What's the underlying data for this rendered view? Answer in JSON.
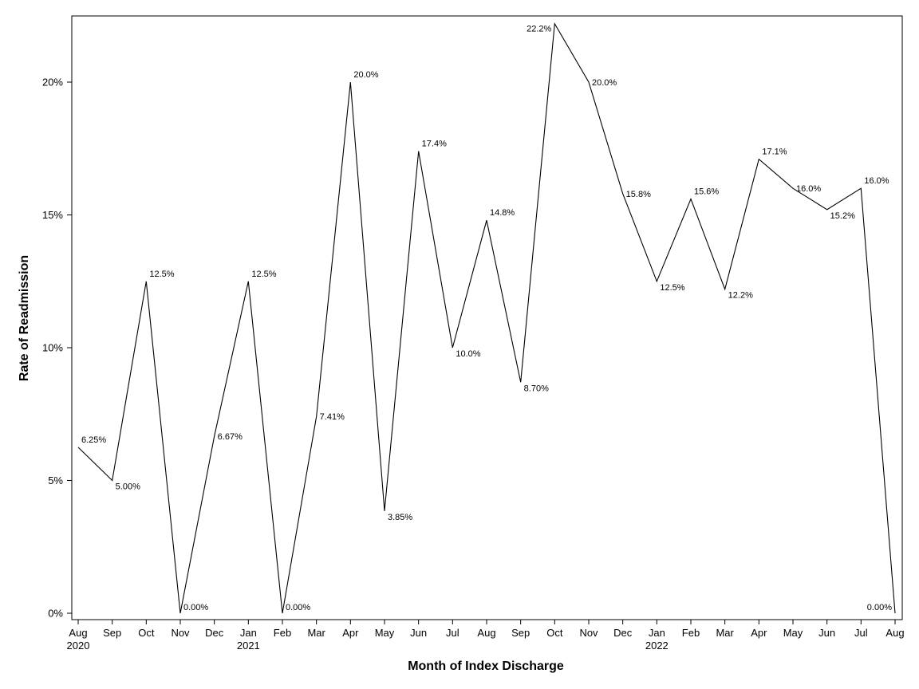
{
  "chart_data": {
    "type": "line",
    "title": "",
    "xlabel": "Month of Index Discharge",
    "ylabel": "Rate of Readmission",
    "ylim": [
      0,
      22.2
    ],
    "yticks": [
      "0%",
      "5%",
      "10%",
      "15%",
      "20%"
    ],
    "grid": false,
    "legend": "none",
    "line_color": "#000000",
    "categories": [
      "Aug 2020",
      "Sep",
      "Oct",
      "Nov",
      "Dec",
      "Jan 2021",
      "Feb",
      "Mar",
      "Apr",
      "May",
      "Jun",
      "Jul",
      "Aug",
      "Sep",
      "Oct",
      "Nov",
      "Dec",
      "Jan 2022",
      "Feb",
      "Mar",
      "Apr",
      "May",
      "Jun",
      "Jul",
      "Aug"
    ],
    "x_tick_month": [
      "Aug",
      "Sep",
      "Oct",
      "Nov",
      "Dec",
      "Jan",
      "Feb",
      "Mar",
      "Apr",
      "May",
      "Jun",
      "Jul",
      "Aug",
      "Sep",
      "Oct",
      "Nov",
      "Dec",
      "Jan",
      "Feb",
      "Mar",
      "Apr",
      "May",
      "Jun",
      "Jul",
      "Aug"
    ],
    "x_tick_year": [
      "2020",
      "",
      "",
      "",
      "",
      "2021",
      "",
      "",
      "",
      "",
      "",
      "",
      "",
      "",
      "",
      "",
      "",
      "2022",
      "",
      "",
      "",
      "",
      "",
      "",
      ""
    ],
    "values": [
      6.25,
      5.0,
      12.5,
      0.0,
      6.67,
      12.5,
      0.0,
      7.41,
      20.0,
      3.85,
      17.4,
      10.0,
      14.8,
      8.7,
      22.2,
      20.0,
      15.8,
      12.5,
      15.6,
      12.2,
      17.1,
      16.0,
      15.2,
      16.0,
      0.0
    ],
    "data_labels": [
      "6.25%",
      "5.00%",
      "12.5%",
      "0.00%",
      "6.67%",
      "12.5%",
      "0.00%",
      "7.41%",
      "20.0%",
      "3.85%",
      "17.4%",
      "10.0%",
      "14.8%",
      "8.70%",
      "22.2%",
      "20.0%",
      "15.8%",
      "12.5%",
      "15.6%",
      "12.2%",
      "17.1%",
      "16.0%",
      "15.2%",
      "16.0%",
      "0.00%"
    ]
  }
}
